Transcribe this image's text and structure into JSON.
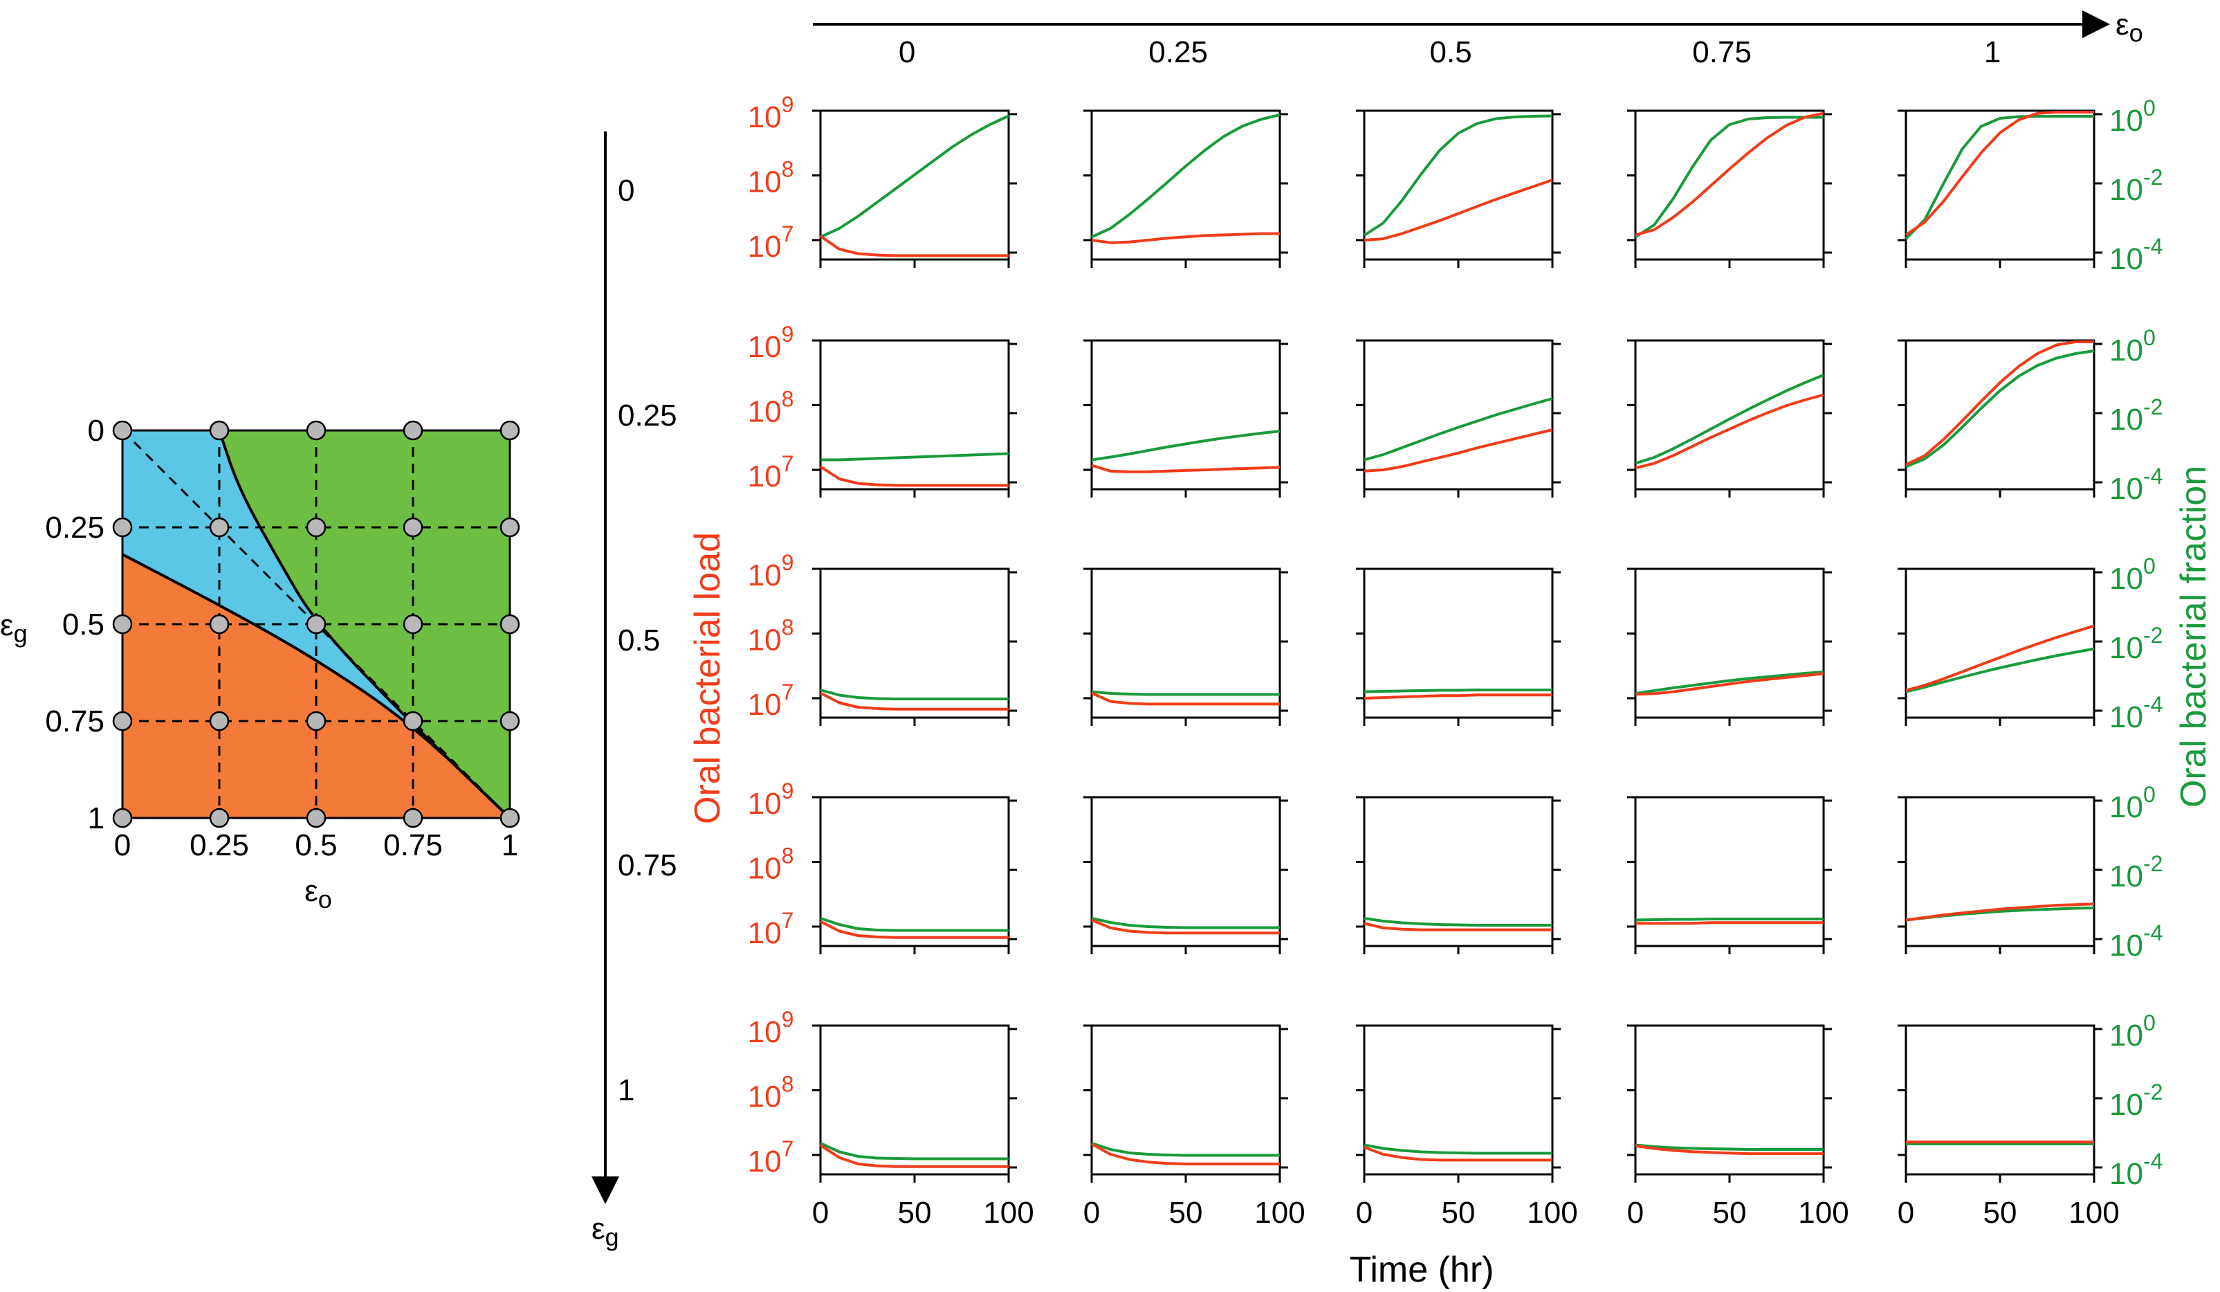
{
  "colors": {
    "red": "#f03c1a",
    "green": "#1a9a3c",
    "orange_region": "#f47a3a",
    "blue_region": "#5bc6e6",
    "green_region": "#6dbf44",
    "node": "#b8b8b8"
  },
  "phase_diagram": {
    "y_symbol": "ε",
    "y_sub": "g",
    "x_symbol": "ε",
    "x_sub": "o",
    "ticks": [
      "0",
      "0.25",
      "0.5",
      "0.75",
      "1"
    ]
  },
  "top_axis": {
    "symbol": "ε",
    "sub": "o",
    "labels": [
      "0",
      "0.25",
      "0.5",
      "0.75",
      "1"
    ]
  },
  "left_axis": {
    "symbol": "ε",
    "sub": "g",
    "labels": [
      "0",
      "0.25",
      "0.5",
      "0.75",
      "1"
    ]
  },
  "left_ylabel": "Oral bacterial load",
  "right_ylabel": "Oral bacterial fraction",
  "xlabel": "Time (hr)",
  "x_ticks": [
    "0",
    "50",
    "100"
  ],
  "left_ticks": [
    {
      "base": "10",
      "exp": "9"
    },
    {
      "base": "10",
      "exp": "8"
    },
    {
      "base": "10",
      "exp": "7"
    }
  ],
  "right_ticks": [
    {
      "base": "10",
      "exp": "0"
    },
    {
      "base": "10",
      "exp": "-2"
    },
    {
      "base": "10",
      "exp": "-4"
    }
  ],
  "chart_data": [
    {
      "type": "line",
      "x": [
        0,
        10,
        20,
        30,
        40,
        50,
        60,
        70,
        80,
        90,
        100
      ],
      "xlim": [
        0,
        100
      ],
      "ylim_left_log10": [
        6.7,
        9.0
      ],
      "ylim_right_log10": [
        -4.2,
        0.1
      ],
      "series_left_log10_by_row_col": [
        [
          [
            7.06,
            6.86,
            6.79,
            6.77,
            6.76,
            6.76,
            6.76,
            6.76,
            6.76,
            6.76,
            6.76
          ],
          [
            7.0,
            6.96,
            6.97,
            7.0,
            7.03,
            7.05,
            7.07,
            7.08,
            7.09,
            7.1,
            7.1
          ],
          [
            7.0,
            7.02,
            7.1,
            7.2,
            7.3,
            7.41,
            7.52,
            7.63,
            7.73,
            7.83,
            7.93
          ],
          [
            7.08,
            7.16,
            7.35,
            7.58,
            7.84,
            8.1,
            8.35,
            8.58,
            8.77,
            8.9,
            8.96
          ],
          [
            7.08,
            7.28,
            7.6,
            7.98,
            8.35,
            8.66,
            8.86,
            8.96,
            9.0,
            9.0,
            9.0
          ]
        ],
        [
          [
            7.05,
            6.86,
            6.79,
            6.77,
            6.76,
            6.76,
            6.76,
            6.76,
            6.76,
            6.76,
            6.76
          ],
          [
            7.07,
            6.98,
            6.97,
            6.97,
            6.98,
            6.99,
            7.0,
            7.01,
            7.02,
            7.03,
            7.04
          ],
          [
            6.98,
            7.0,
            7.05,
            7.12,
            7.19,
            7.26,
            7.34,
            7.41,
            7.48,
            7.55,
            7.62
          ],
          [
            7.03,
            7.1,
            7.22,
            7.36,
            7.5,
            7.63,
            7.76,
            7.88,
            7.99,
            8.08,
            8.16
          ],
          [
            7.08,
            7.22,
            7.47,
            7.76,
            8.06,
            8.35,
            8.6,
            8.8,
            8.93,
            8.99,
            9.0
          ]
        ],
        [
          [
            7.08,
            6.93,
            6.86,
            6.84,
            6.83,
            6.83,
            6.83,
            6.83,
            6.83,
            6.83,
            6.83
          ],
          [
            7.08,
            6.95,
            6.92,
            6.91,
            6.91,
            6.91,
            6.91,
            6.91,
            6.91,
            6.91,
            6.91
          ],
          [
            7.0,
            7.01,
            7.02,
            7.03,
            7.04,
            7.04,
            7.05,
            7.05,
            7.05,
            7.05,
            7.05
          ],
          [
            7.06,
            7.07,
            7.1,
            7.14,
            7.18,
            7.22,
            7.26,
            7.29,
            7.32,
            7.35,
            7.38
          ],
          [
            7.12,
            7.2,
            7.3,
            7.41,
            7.52,
            7.63,
            7.74,
            7.84,
            7.94,
            8.03,
            8.12
          ]
        ],
        [
          [
            7.08,
            6.93,
            6.86,
            6.84,
            6.83,
            6.83,
            6.83,
            6.83,
            6.83,
            6.83,
            6.83
          ],
          [
            7.1,
            6.98,
            6.93,
            6.91,
            6.9,
            6.9,
            6.9,
            6.9,
            6.9,
            6.9,
            6.9
          ],
          [
            7.05,
            6.98,
            6.96,
            6.95,
            6.95,
            6.95,
            6.95,
            6.95,
            6.95,
            6.95,
            6.95
          ],
          [
            7.05,
            7.05,
            7.05,
            7.05,
            7.06,
            7.06,
            7.06,
            7.06,
            7.06,
            7.06,
            7.06
          ],
          [
            7.1,
            7.14,
            7.18,
            7.21,
            7.24,
            7.27,
            7.29,
            7.31,
            7.33,
            7.34,
            7.35
          ]
        ],
        [
          [
            7.15,
            6.96,
            6.86,
            6.83,
            6.82,
            6.82,
            6.82,
            6.82,
            6.82,
            6.82,
            6.82
          ],
          [
            7.17,
            7.01,
            6.93,
            6.89,
            6.87,
            6.86,
            6.86,
            6.86,
            6.86,
            6.86,
            6.86
          ],
          [
            7.12,
            7.01,
            6.96,
            6.93,
            6.92,
            6.92,
            6.92,
            6.92,
            6.92,
            6.92,
            6.92
          ],
          [
            7.14,
            7.1,
            7.07,
            7.05,
            7.04,
            7.03,
            7.02,
            7.02,
            7.02,
            7.02,
            7.02
          ],
          [
            7.2,
            7.2,
            7.2,
            7.2,
            7.2,
            7.2,
            7.2,
            7.2,
            7.2,
            7.2,
            7.2
          ]
        ]
      ],
      "series_right_log10_by_row_col": [
        [
          [
            -3.55,
            -3.3,
            -2.95,
            -2.55,
            -2.15,
            -1.75,
            -1.35,
            -0.95,
            -0.6,
            -0.3,
            -0.05
          ],
          [
            -3.55,
            -3.3,
            -2.9,
            -2.45,
            -1.98,
            -1.5,
            -1.05,
            -0.65,
            -0.35,
            -0.15,
            -0.02
          ],
          [
            -3.5,
            -3.15,
            -2.5,
            -1.75,
            -1.05,
            -0.55,
            -0.27,
            -0.13,
            -0.08,
            -0.06,
            -0.05
          ],
          [
            -3.55,
            -3.2,
            -2.45,
            -1.55,
            -0.75,
            -0.3,
            -0.14,
            -0.1,
            -0.09,
            -0.09,
            -0.09
          ],
          [
            -3.6,
            -3.05,
            -2.0,
            -1.0,
            -0.35,
            -0.12,
            -0.07,
            -0.06,
            -0.06,
            -0.06,
            -0.06
          ]
        ],
        [
          [
            -3.35,
            -3.35,
            -3.33,
            -3.31,
            -3.29,
            -3.27,
            -3.25,
            -3.23,
            -3.21,
            -3.19,
            -3.17
          ],
          [
            -3.35,
            -3.27,
            -3.18,
            -3.08,
            -2.98,
            -2.89,
            -2.8,
            -2.72,
            -2.65,
            -2.58,
            -2.52
          ],
          [
            -3.35,
            -3.2,
            -3.0,
            -2.8,
            -2.6,
            -2.41,
            -2.23,
            -2.05,
            -1.89,
            -1.73,
            -1.58
          ],
          [
            -3.45,
            -3.28,
            -3.03,
            -2.75,
            -2.46,
            -2.17,
            -1.89,
            -1.62,
            -1.36,
            -1.12,
            -0.9
          ],
          [
            -3.55,
            -3.32,
            -2.92,
            -2.4,
            -1.86,
            -1.35,
            -0.93,
            -0.62,
            -0.41,
            -0.28,
            -0.2
          ]
        ],
        [
          [
            -3.4,
            -3.55,
            -3.62,
            -3.65,
            -3.66,
            -3.66,
            -3.66,
            -3.66,
            -3.66,
            -3.66,
            -3.66
          ],
          [
            -3.45,
            -3.5,
            -3.52,
            -3.53,
            -3.53,
            -3.53,
            -3.53,
            -3.53,
            -3.53,
            -3.53,
            -3.53
          ],
          [
            -3.45,
            -3.44,
            -3.43,
            -3.42,
            -3.41,
            -3.41,
            -3.4,
            -3.4,
            -3.4,
            -3.4,
            -3.4
          ],
          [
            -3.5,
            -3.42,
            -3.34,
            -3.27,
            -3.2,
            -3.13,
            -3.07,
            -3.02,
            -2.97,
            -2.92,
            -2.88
          ],
          [
            -3.45,
            -3.32,
            -3.17,
            -3.03,
            -2.89,
            -2.76,
            -2.64,
            -2.52,
            -2.41,
            -2.31,
            -2.21
          ]
        ],
        [
          [
            -3.4,
            -3.58,
            -3.7,
            -3.74,
            -3.75,
            -3.75,
            -3.75,
            -3.75,
            -3.75,
            -3.75,
            -3.75
          ],
          [
            -3.4,
            -3.52,
            -3.6,
            -3.64,
            -3.66,
            -3.67,
            -3.67,
            -3.67,
            -3.67,
            -3.67,
            -3.67
          ],
          [
            -3.4,
            -3.48,
            -3.53,
            -3.56,
            -3.58,
            -3.59,
            -3.6,
            -3.6,
            -3.6,
            -3.6,
            -3.6
          ],
          [
            -3.45,
            -3.44,
            -3.43,
            -3.43,
            -3.42,
            -3.42,
            -3.42,
            -3.42,
            -3.42,
            -3.42,
            -3.42
          ],
          [
            -3.45,
            -3.39,
            -3.33,
            -3.28,
            -3.24,
            -3.2,
            -3.17,
            -3.15,
            -3.13,
            -3.11,
            -3.1
          ]
        ],
        [
          [
            -3.3,
            -3.55,
            -3.68,
            -3.73,
            -3.74,
            -3.75,
            -3.75,
            -3.75,
            -3.75,
            -3.75,
            -3.75
          ],
          [
            -3.3,
            -3.48,
            -3.58,
            -3.62,
            -3.64,
            -3.65,
            -3.65,
            -3.65,
            -3.65,
            -3.65,
            -3.65
          ],
          [
            -3.35,
            -3.45,
            -3.51,
            -3.55,
            -3.57,
            -3.58,
            -3.59,
            -3.59,
            -3.59,
            -3.59,
            -3.59
          ],
          [
            -3.35,
            -3.4,
            -3.43,
            -3.45,
            -3.46,
            -3.47,
            -3.48,
            -3.48,
            -3.48,
            -3.48,
            -3.48
          ],
          [
            -3.32,
            -3.32,
            -3.32,
            -3.32,
            -3.32,
            -3.32,
            -3.32,
            -3.32,
            -3.32,
            -3.32,
            -3.32
          ]
        ]
      ]
    },
    {
      "type": "phase-diagram",
      "xlim": [
        0,
        1
      ],
      "ylim": [
        0,
        1
      ],
      "grid_points": [
        0,
        0.25,
        0.5,
        0.75,
        1
      ],
      "boundary_lower": [
        [
          0,
          0.32
        ],
        [
          0.25,
          0.45
        ],
        [
          0.5,
          0.59
        ],
        [
          0.75,
          0.76
        ],
        [
          1,
          1
        ]
      ],
      "boundary_upper": [
        [
          0.25,
          0
        ],
        [
          0.3,
          0.15
        ],
        [
          0.4,
          0.33
        ],
        [
          0.5,
          0.5
        ],
        [
          0.75,
          0.76
        ],
        [
          1,
          1
        ]
      ],
      "dashed_diagonal": [
        [
          0,
          0
        ],
        [
          1,
          1
        ]
      ]
    }
  ]
}
